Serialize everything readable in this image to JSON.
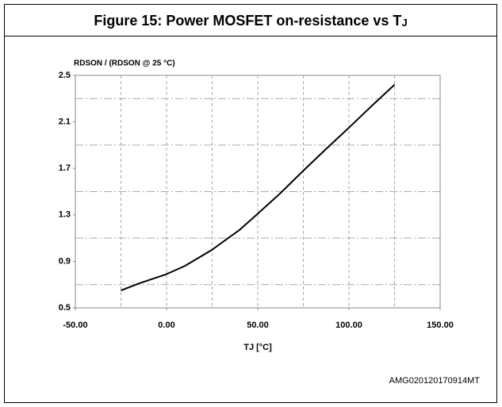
{
  "chart_data": {
    "type": "line",
    "title": "Figure 15: Power MOSFET on-resistance vs T",
    "title_subscript": "J",
    "y_label": "RDSON / (RDSON @ 25 °C)",
    "x_label": "TJ [°C]",
    "footnote": "AMG020120170914MT",
    "x": [
      -25,
      -15,
      0,
      10,
      25,
      40,
      50,
      62,
      75,
      87,
      100,
      112,
      125
    ],
    "series": [
      {
        "name": "RDSON",
        "color": "#000000",
        "values": [
          0.65,
          0.71,
          0.79,
          0.86,
          1.0,
          1.17,
          1.31,
          1.48,
          1.68,
          1.86,
          2.05,
          2.23,
          2.42
        ]
      }
    ],
    "xlim": [
      -50,
      150
    ],
    "xticks": [
      {
        "value": -50,
        "label": "-50.00"
      },
      {
        "value": 0,
        "label": "0.00"
      },
      {
        "value": 50,
        "label": "50.00"
      },
      {
        "value": 100,
        "label": "100.00"
      },
      {
        "value": 150,
        "label": "150.00"
      }
    ],
    "ylim": [
      0.5,
      2.5
    ],
    "yticks": [
      0.5,
      0.9,
      1.3,
      1.7,
      2.1,
      2.5
    ],
    "xgrid": [
      -25,
      0,
      25,
      50,
      75,
      100,
      125
    ],
    "ygrid": [
      0.7,
      1.1,
      1.5,
      1.9,
      2.3
    ],
    "grid": true
  }
}
